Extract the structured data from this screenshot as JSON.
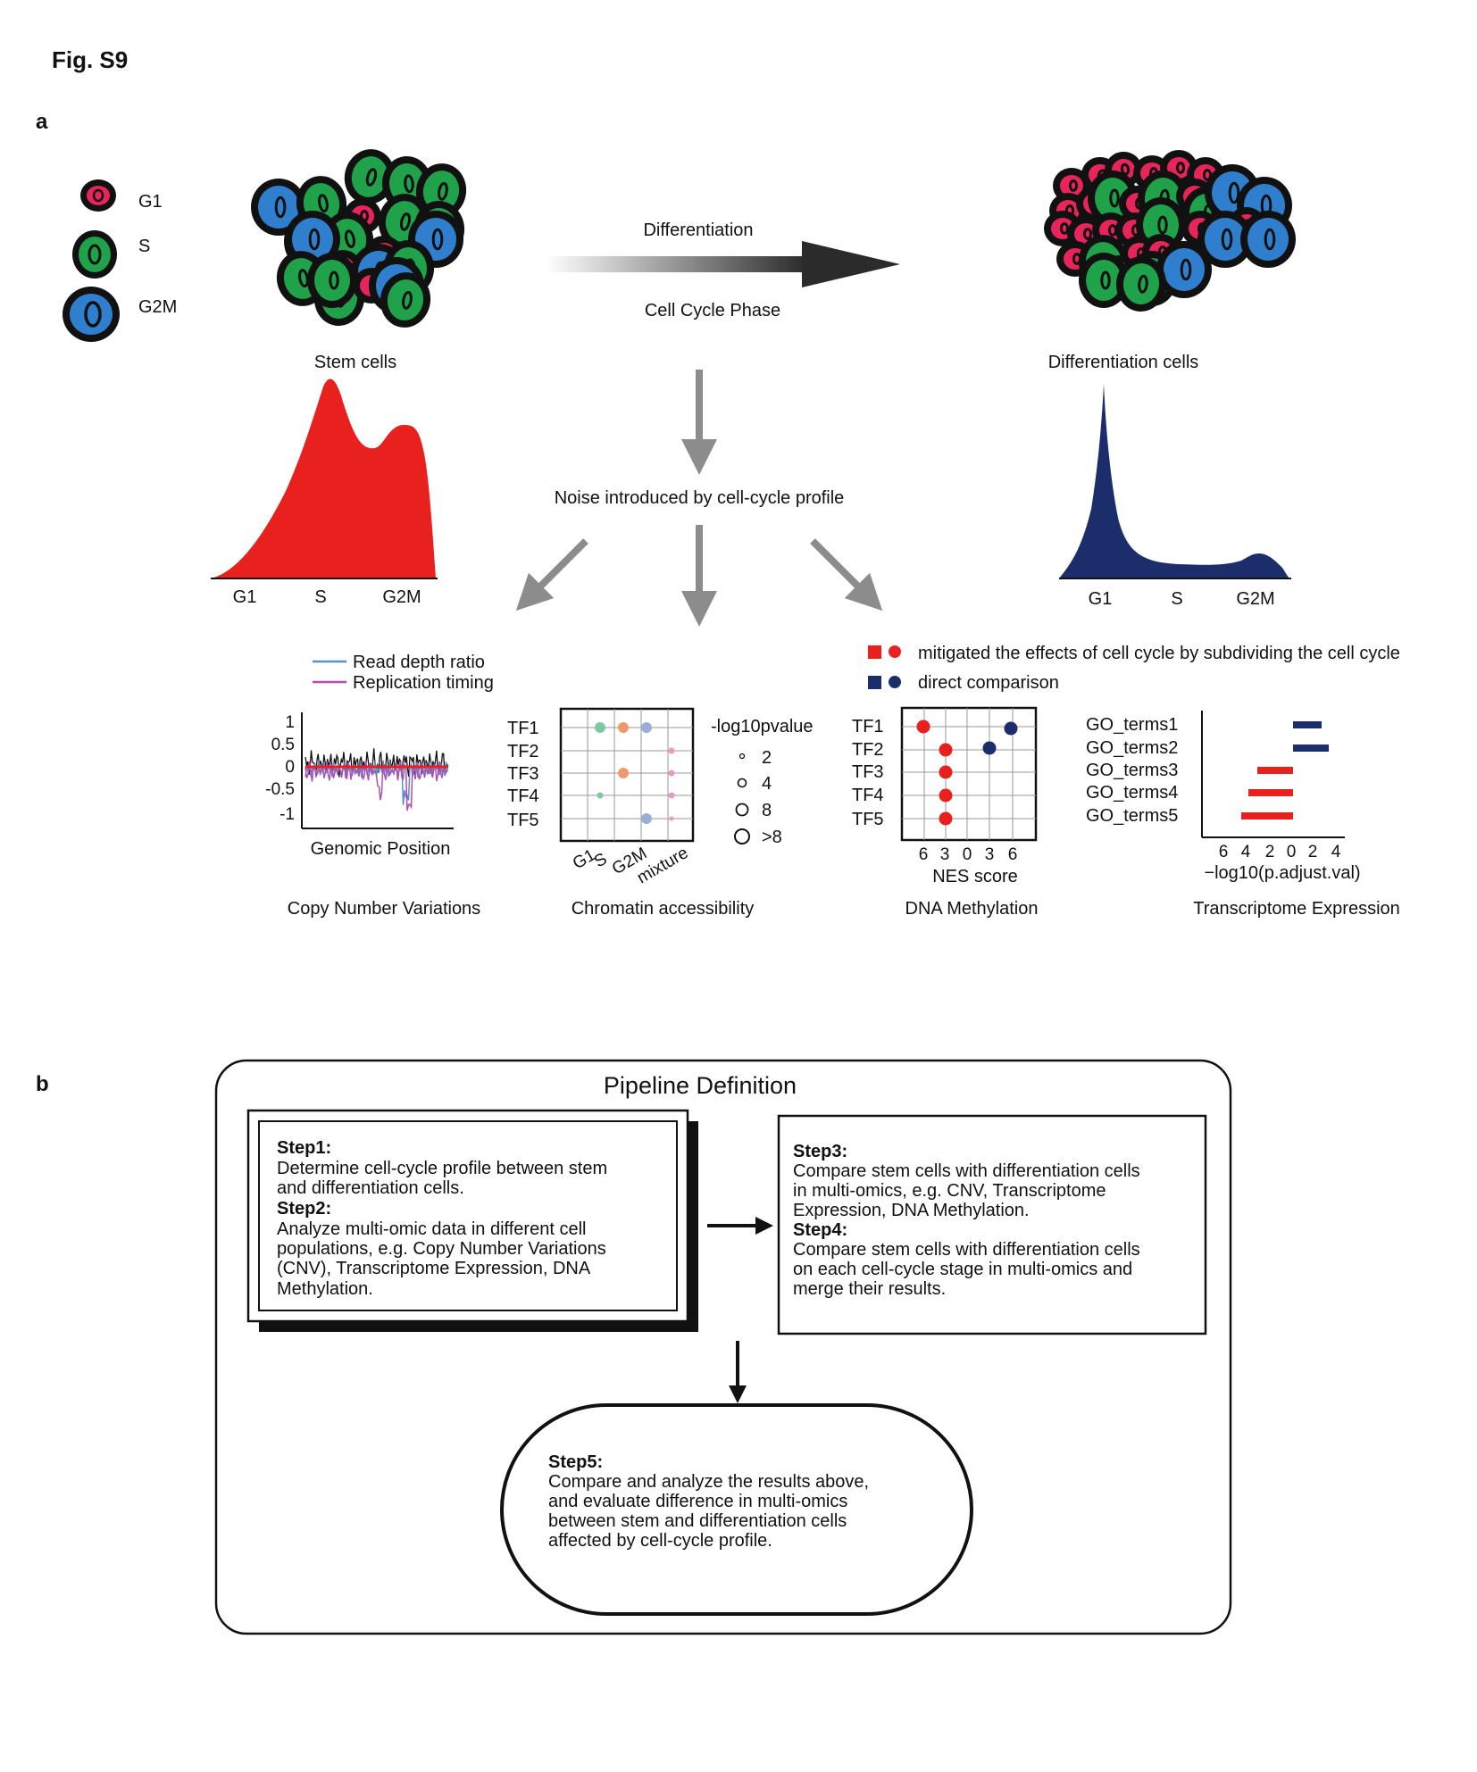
{
  "figure_label": "Fig. S9",
  "panel_a_label": "a",
  "panel_b_label": "b",
  "legend_phases": [
    {
      "label": "G1",
      "color": "#e8245a"
    },
    {
      "label": "S",
      "color": "#1fa24a"
    },
    {
      "label": "G2M",
      "color": "#2f7fce"
    }
  ],
  "stem_cells_label": "Stem cells",
  "differentiation_cells_label": "Differentiation cells",
  "arrow_top_label": "Differentiation",
  "arrow_bottom_label": "Cell Cycle Phase",
  "noise_label": "Noise introduced by cell-cycle profile",
  "stem_profile_axis": [
    "G1",
    "S",
    "G2M"
  ],
  "diff_profile_axis": [
    "G1",
    "S",
    "G2M"
  ],
  "colors": {
    "red": "#e8201e",
    "navy": "#1b2e6b",
    "arrow_gray": "#8c8c8c"
  },
  "cnv": {
    "legend": [
      {
        "label": "Read depth ratio",
        "color": "#5b8fc9"
      },
      {
        "label": "Replication timing",
        "color": "#b04fb0"
      }
    ],
    "yticks": [
      "1",
      "0.5",
      "0",
      "-0.5",
      "-1"
    ],
    "xlabel": "Genomic Position",
    "title": "Copy Number Variations"
  },
  "chromatin": {
    "rows": [
      "TF1",
      "TF2",
      "TF3",
      "TF4",
      "TF5"
    ],
    "cols": [
      "G1",
      "S",
      "G2M",
      "mixture"
    ],
    "size_legend_title": "-log10pvalue",
    "size_legend": [
      "2",
      "4",
      "8",
      ">8"
    ],
    "title": "Chromatin accessibility"
  },
  "methylation": {
    "legend": [
      {
        "label": "mitigated the effects of cell cycle by subdividing the cell cycle",
        "color": "#e8201e"
      },
      {
        "label": "direct comparison",
        "color": "#1b2e6b"
      }
    ],
    "rows": [
      "TF1",
      "TF2",
      "TF3",
      "TF4",
      "TF5"
    ],
    "xticks": [
      "6",
      "3",
      "0",
      "3",
      "6"
    ],
    "xlabel": "NES score",
    "title": "DNA Methylation"
  },
  "transcriptome": {
    "rows": [
      "GO_terms1",
      "GO_terms2",
      "GO_terms3",
      "GO_terms4",
      "GO_terms5"
    ],
    "xticks": [
      "6",
      "4",
      "2",
      "0",
      "2",
      "4"
    ],
    "xlabel": "−log10(p.adjust.val)",
    "title": "Transcriptome Expression"
  },
  "pipeline": {
    "title": "Pipeline Definition",
    "step1_head": "Step1:",
    "step1_lines": [
      "Determine cell-cycle profile between stem",
      "and differentiation cells."
    ],
    "step2_head": "Step2:",
    "step2_lines": [
      "Analyze multi-omic data in different cell",
      "populations,  e.g.  Copy Number Variations",
      "(CNV), Transcriptome Expression, DNA",
      "Methylation."
    ],
    "step3_head": "Step3:",
    "step3_lines": [
      "Compare stem cells with differentiation cells",
      "in multi-omics, e.g. CNV, Transcriptome",
      "Expression, DNA Methylation."
    ],
    "step4_head": "Step4:",
    "step4_lines": [
      "Compare stem cells with differentiation  cells",
      "on each cell-cycle stage in multi-omics and",
      "merge their results."
    ],
    "step5_head": "Step5:",
    "step5_lines": [
      "Compare and analyze the results above,",
      "and evaluate difference in multi-omics",
      "between stem and differentiation cells",
      "affected by cell-cycle profile."
    ]
  }
}
